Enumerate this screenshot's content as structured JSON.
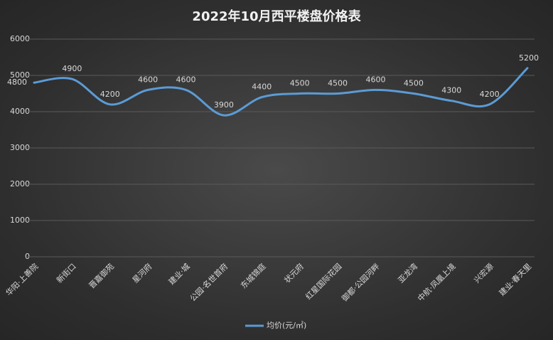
{
  "chart_data": {
    "type": "line",
    "title": "2022年10月西平楼盘价格表",
    "categories": [
      "华阳·上善院",
      "新街口",
      "晋嘉御苑",
      "星河府",
      "建业·城",
      "公园·名世首府",
      "东城锦庭",
      "状元府",
      "红星国际花园",
      "御都·公园河畔",
      "亚龙湾",
      "中航·凤凰上境",
      "兴宏源",
      "建业·春天里"
    ],
    "series": [
      {
        "name": "均价(元/㎡)",
        "color": "#5b9bd5",
        "values": [
          4800,
          4900,
          4200,
          4600,
          4600,
          3900,
          4400,
          4500,
          4500,
          4600,
          4500,
          4300,
          4200,
          5200
        ]
      }
    ],
    "ylim": [
      0,
      6000
    ],
    "yticks": [
      0,
      1000,
      2000,
      3000,
      4000,
      5000,
      6000
    ],
    "grid": true,
    "legend": "bottom"
  }
}
